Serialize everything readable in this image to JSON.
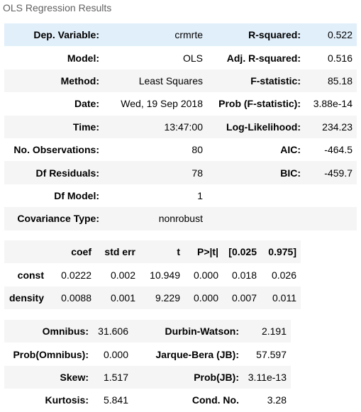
{
  "caption": "OLS Regression Results",
  "summary": {
    "rows": [
      {
        "l1": "Dep. Variable:",
        "v1": "crmrte",
        "l2": "R-squared:",
        "v2": "0.522"
      },
      {
        "l1": "Model:",
        "v1": "OLS",
        "l2": "Adj. R-squared:",
        "v2": "0.516"
      },
      {
        "l1": "Method:",
        "v1": "Least Squares",
        "l2": "F-statistic:",
        "v2": "85.18"
      },
      {
        "l1": "Date:",
        "v1": "Wed, 19 Sep 2018",
        "l2": "Prob (F-statistic):",
        "v2": "3.88e-14"
      },
      {
        "l1": "Time:",
        "v1": "13:47:00",
        "l2": "Log-Likelihood:",
        "v2": "234.23"
      },
      {
        "l1": "No. Observations:",
        "v1": "80",
        "l2": "AIC:",
        "v2": "-464.5"
      },
      {
        "l1": "Df Residuals:",
        "v1": "78",
        "l2": "BIC:",
        "v2": "-459.7"
      },
      {
        "l1": "Df Model:",
        "v1": "1",
        "l2": "",
        "v2": ""
      },
      {
        "l1": "Covariance Type:",
        "v1": "nonrobust",
        "l2": "",
        "v2": ""
      }
    ]
  },
  "coefs": {
    "headers": [
      "",
      "coef",
      "std err",
      "t",
      "P>|t|",
      "[0.025",
      "0.975]"
    ],
    "rows": [
      {
        "name": "const",
        "coef": "0.0222",
        "stderr": "0.002",
        "t": "10.949",
        "p": "0.000",
        "lo": "0.018",
        "hi": "0.026"
      },
      {
        "name": "density",
        "coef": "0.0088",
        "stderr": "0.001",
        "t": "9.229",
        "p": "0.000",
        "lo": "0.007",
        "hi": "0.011"
      }
    ]
  },
  "diagnostics": {
    "rows": [
      {
        "l1": "Omnibus:",
        "v1": "31.606",
        "l2": "Durbin-Watson:",
        "v2": "2.191"
      },
      {
        "l1": "Prob(Omnibus):",
        "v1": "0.000",
        "l2": "Jarque-Bera (JB):",
        "v2": "57.597"
      },
      {
        "l1": "Skew:",
        "v1": "1.517",
        "l2": "Prob(JB):",
        "v2": "3.11e-13"
      },
      {
        "l1": "Kurtosis:",
        "v1": "5.841",
        "l2": "Cond. No.",
        "v2": "3.28"
      }
    ]
  },
  "colors": {
    "highlight_row": "#e1effa",
    "alt_row": "#f5f5f5",
    "caption_text": "#616161"
  }
}
